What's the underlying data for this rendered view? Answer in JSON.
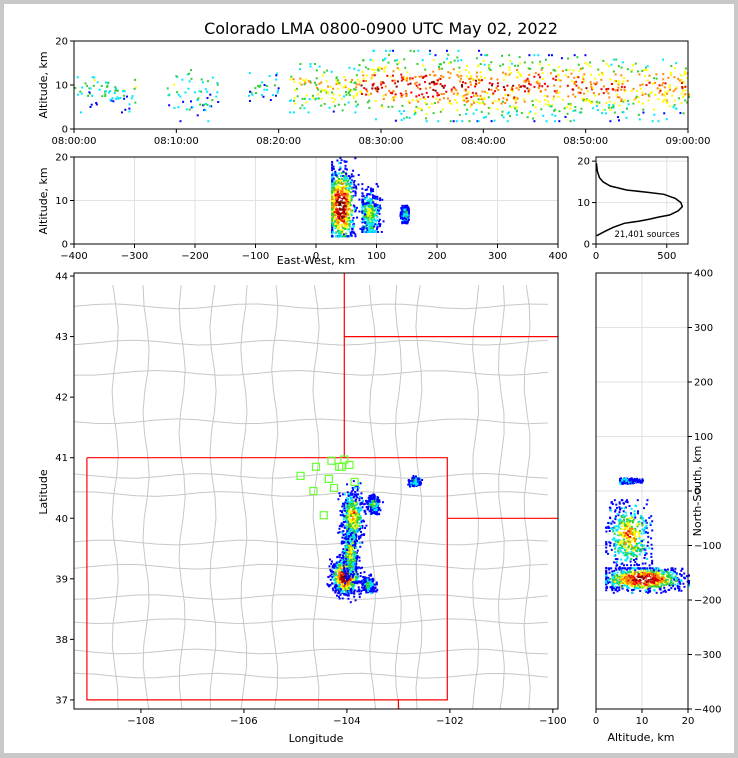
{
  "title": "Colorado LMA 0800-0900 UTC May 02, 2022",
  "colors": {
    "frame": "#c8c8c8",
    "border": "#ff0000",
    "county": "#c8c8c8",
    "grid": "#e2e2e2",
    "station": "#66ff33",
    "density": [
      "#0000ff",
      "#00e8ff",
      "#33cc33",
      "#ffff00",
      "#ff8800",
      "#ee0000",
      "#880000",
      "#ffffff",
      "#000000"
    ]
  },
  "chart_data": [
    {
      "id": "time_height",
      "type": "heatmap",
      "ylabel": "Altitude, km",
      "ylim": [
        0,
        20
      ],
      "yticks": [
        0,
        10,
        20
      ],
      "xlim": [
        0,
        3600
      ],
      "xtick_labels": [
        "08:00:00",
        "08:10:00",
        "08:20:00",
        "08:30:00",
        "08:40:00",
        "08:50:00",
        "09:00:00"
      ],
      "activity_segments": [
        {
          "t_start": 0,
          "t_end": 360,
          "alt_min": 4,
          "alt_max": 12,
          "density": 0.35
        },
        {
          "t_start": 540,
          "t_end": 840,
          "alt_min": 2,
          "alt_max": 14,
          "density": 0.35
        },
        {
          "t_start": 1020,
          "t_end": 1200,
          "alt_min": 6,
          "alt_max": 13,
          "density": 0.3
        },
        {
          "t_start": 1260,
          "t_end": 1680,
          "alt_min": 4,
          "alt_max": 15,
          "density": 0.6
        },
        {
          "t_start": 1680,
          "t_end": 2400,
          "alt_min": 2,
          "alt_max": 18,
          "density": 0.9
        },
        {
          "t_start": 2400,
          "t_end": 3000,
          "alt_min": 2,
          "alt_max": 17,
          "density": 0.85
        },
        {
          "t_start": 3000,
          "t_end": 3600,
          "alt_min": 2,
          "alt_max": 16,
          "density": 0.75
        }
      ]
    },
    {
      "id": "ew_height",
      "type": "heatmap",
      "xlabel": "East-West, km",
      "ylabel": "Altitude, km",
      "xlim": [
        -400,
        400
      ],
      "xticks": [
        -400,
        -300,
        -200,
        -100,
        0,
        100,
        200,
        300,
        400
      ],
      "ylim": [
        0,
        20
      ],
      "yticks": [
        0,
        10,
        20
      ],
      "clusters": [
        {
          "x_min": 25,
          "x_max": 75,
          "alt_min": 2,
          "alt_max": 20,
          "center_x": 40,
          "center_alt": 9,
          "density": 1.0
        },
        {
          "x_min": 75,
          "x_max": 110,
          "alt_min": 3,
          "alt_max": 14,
          "center_x": 88,
          "center_alt": 7,
          "density": 0.45
        },
        {
          "x_min": 138,
          "x_max": 152,
          "alt_min": 5,
          "alt_max": 9,
          "center_x": 146,
          "center_alt": 7,
          "density": 0.3
        }
      ]
    },
    {
      "id": "alt_histogram",
      "type": "line",
      "xlim": [
        0,
        650
      ],
      "xticks": [
        0,
        500
      ],
      "ylim": [
        0,
        21
      ],
      "yticks": [
        0,
        10,
        20
      ],
      "annotation": "21,401 sources",
      "x": [
        5,
        60,
        120,
        200,
        300,
        380,
        440,
        520,
        580,
        610,
        600,
        560,
        480,
        360,
        220,
        100,
        50,
        25,
        10,
        3
      ],
      "y": [
        2,
        3,
        4,
        5,
        5.5,
        6,
        6.5,
        7,
        8,
        9,
        10,
        11,
        12,
        12.5,
        13,
        14,
        15,
        16,
        17.5,
        19.5
      ]
    },
    {
      "id": "plan_view",
      "type": "scatter",
      "xlabel": "Longitude",
      "ylabel": "Latitude",
      "xlim": [
        -109.3,
        -99.9
      ],
      "ylim": [
        36.85,
        44.05
      ],
      "xticks": [
        -108,
        -106,
        -104,
        -102,
        -100
      ],
      "yticks": [
        37,
        38,
        39,
        40,
        41,
        42,
        43,
        44
      ],
      "state_borders": [
        [
          [
            -109.05,
            41.0
          ],
          [
            -102.05,
            41.0
          ],
          [
            -102.05,
            37.0
          ],
          [
            -109.05,
            37.0
          ],
          [
            -109.05,
            41.0
          ]
        ],
        [
          [
            -104.05,
            41.0
          ],
          [
            -104.05,
            44.05
          ]
        ],
        [
          [
            -104.05,
            43.0
          ],
          [
            -99.9,
            43.0
          ]
        ],
        [
          [
            -102.05,
            40.0
          ],
          [
            -99.9,
            40.0
          ]
        ],
        [
          [
            -103.0,
            37.0
          ],
          [
            -103.0,
            36.85
          ]
        ]
      ],
      "county_grid_lon": [
        -108.5,
        -107.9,
        -107.2,
        -106.6,
        -106.0,
        -105.4,
        -104.6,
        -103.5,
        -103.0,
        -102.6,
        -101.5,
        -101.0,
        -100.5
      ],
      "county_grid_lat": [
        37.4,
        37.8,
        38.3,
        38.7,
        39.2,
        39.6,
        40.4,
        40.7,
        41.6,
        42.4,
        42.9,
        43.5
      ],
      "stations": [
        [
          -104.6,
          40.85
        ],
        [
          -104.9,
          40.7
        ],
        [
          -104.05,
          40.97
        ],
        [
          -104.3,
          40.95
        ],
        [
          -104.15,
          40.85
        ],
        [
          -103.95,
          40.88
        ],
        [
          -104.35,
          40.65
        ],
        [
          -103.85,
          40.6
        ],
        [
          -104.65,
          40.45
        ],
        [
          -104.25,
          40.5
        ],
        [
          -104.45,
          40.05
        ],
        [
          -104.1,
          40.85
        ]
      ],
      "clusters": [
        {
          "lon": -104.05,
          "lat": 39.05,
          "spread_lon": 0.22,
          "spread_lat": 0.25,
          "density": 1.0
        },
        {
          "lon": -103.95,
          "lat": 39.45,
          "spread_lon": 0.12,
          "spread_lat": 0.35,
          "density": 0.55
        },
        {
          "lon": -103.9,
          "lat": 40.05,
          "spread_lon": 0.18,
          "spread_lat": 0.35,
          "density": 0.6
        },
        {
          "lon": -103.5,
          "lat": 40.25,
          "spread_lon": 0.1,
          "spread_lat": 0.12,
          "density": 0.35
        },
        {
          "lon": -102.7,
          "lat": 40.62,
          "spread_lon": 0.08,
          "spread_lat": 0.06,
          "density": 0.3
        },
        {
          "lon": -103.6,
          "lat": 38.92,
          "spread_lon": 0.1,
          "spread_lat": 0.1,
          "density": 0.3
        }
      ]
    },
    {
      "id": "ns_height",
      "type": "heatmap",
      "xlabel": "Altitude, km",
      "ylabel": "North-South, km",
      "xlim": [
        0,
        20
      ],
      "xticks": [
        0,
        10,
        20
      ],
      "ylim": [
        -400,
        400
      ],
      "yticks": [
        -400,
        -300,
        -200,
        -100,
        0,
        100,
        200,
        300,
        400
      ],
      "clusters": [
        {
          "alt_min": 2,
          "alt_max": 20,
          "y_min": -185,
          "y_max": -140,
          "center_alt": 10,
          "center_y": -160,
          "density": 1.0
        },
        {
          "alt_min": 2,
          "alt_max": 12,
          "y_min": -140,
          "y_max": -15,
          "center_alt": 7,
          "center_y": -80,
          "density": 0.6
        },
        {
          "alt_min": 5,
          "alt_max": 10,
          "y_min": 15,
          "y_max": 25,
          "center_alt": 7,
          "center_y": 20,
          "density": 0.25
        }
      ]
    }
  ]
}
